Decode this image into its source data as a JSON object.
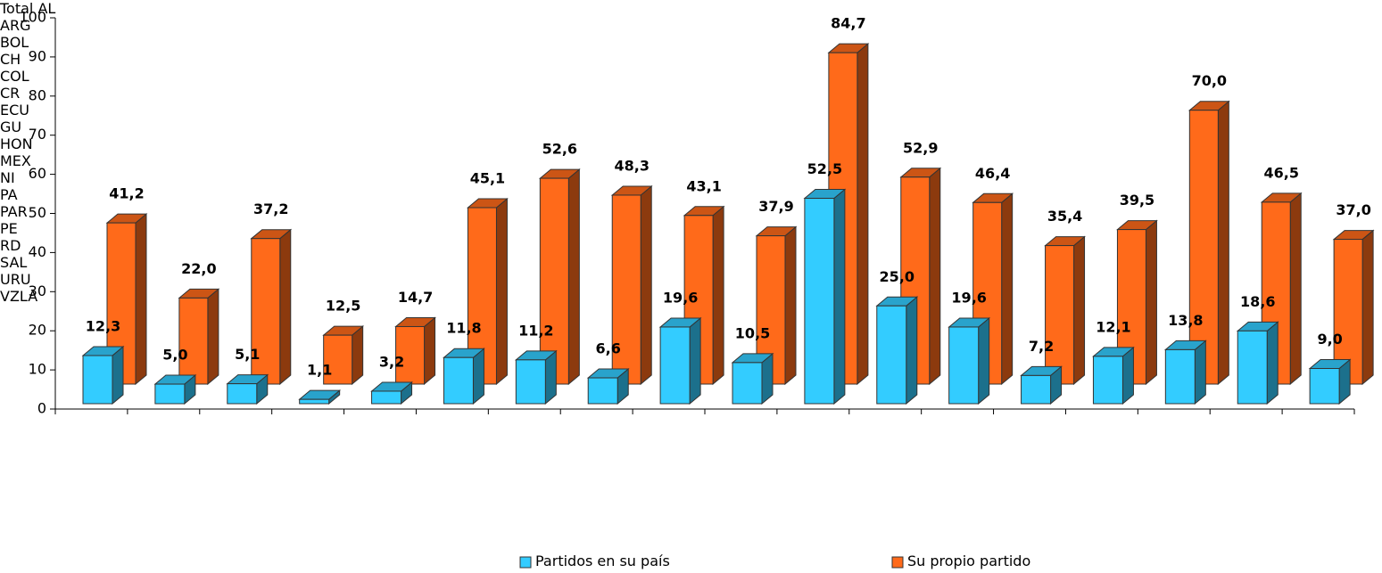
{
  "chart_data": {
    "type": "bar",
    "categories": [
      "Total AL",
      "ARG",
      "BOL",
      "CH",
      "COL",
      "CR",
      "ECU",
      "GU",
      "HON",
      "MEX",
      "NI",
      "PA",
      "PAR",
      "PE",
      "RD",
      "SAL",
      "URU",
      "VZLA"
    ],
    "series": [
      {
        "name": "Partidos en su país",
        "color": "#33ccff",
        "values": [
          12.3,
          5.0,
          5.1,
          1.1,
          3.2,
          11.8,
          11.2,
          6.6,
          19.6,
          10.5,
          52.5,
          25.0,
          19.6,
          7.2,
          12.1,
          13.8,
          18.6,
          9.0
        ],
        "value_labels": [
          "12,3",
          "5,0",
          "5,1",
          "1,1",
          "3,2",
          "11,8",
          "11,2",
          "6,6",
          "19,6",
          "10,5",
          "52,5",
          "25,0",
          "19,6",
          "7,2",
          "12,1",
          "13,8",
          "18,6",
          "9,0"
        ]
      },
      {
        "name": "Su propio partido",
        "color": "#ff6a1a",
        "values": [
          41.2,
          22.0,
          37.2,
          12.5,
          14.7,
          45.1,
          52.6,
          48.3,
          43.1,
          37.9,
          84.7,
          52.9,
          46.4,
          35.4,
          39.5,
          70.0,
          46.5,
          37.0
        ],
        "value_labels": [
          "41,2",
          "22,0",
          "37,2",
          "12,5",
          "14,7",
          "45,1",
          "52,6",
          "48,3",
          "43,1",
          "37,9",
          "84,7",
          "52,9",
          "46,4",
          "35,4",
          "39,5",
          "70,0",
          "46,5",
          "37,0"
        ]
      }
    ],
    "ylim": [
      0,
      100
    ],
    "yticks": [
      0,
      10,
      20,
      30,
      40,
      50,
      60,
      70,
      80,
      90,
      100
    ]
  }
}
